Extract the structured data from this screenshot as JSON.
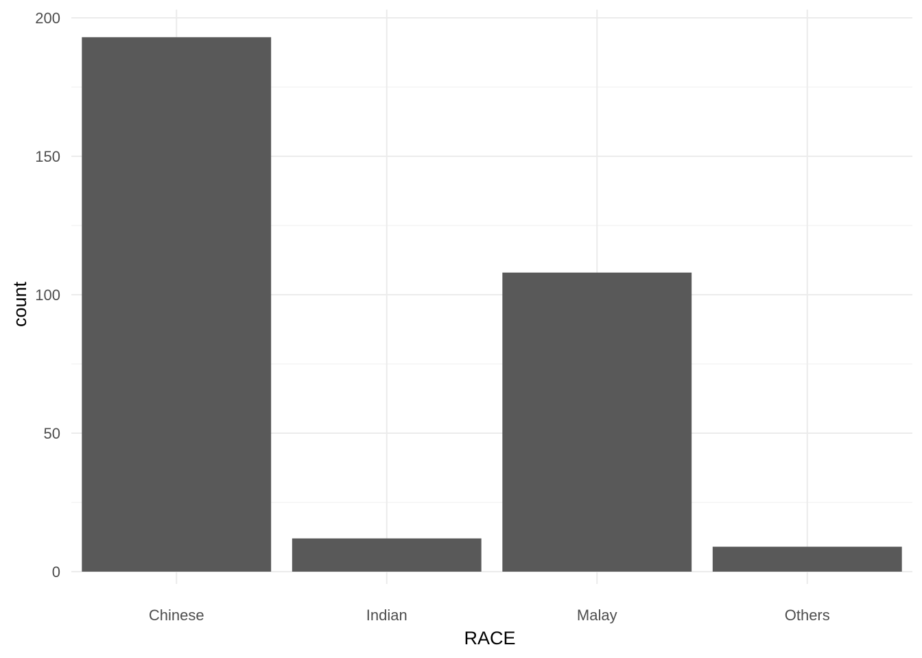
{
  "chart_data": {
    "type": "bar",
    "title": "",
    "xlabel": "RACE",
    "ylabel": "count",
    "categories": [
      "Chinese",
      "Indian",
      "Malay",
      "Others"
    ],
    "values": [
      193,
      12,
      108,
      9
    ],
    "ylim": [
      0,
      202
    ],
    "yticks": [
      0,
      50,
      100,
      150,
      200
    ],
    "grid": true,
    "bar_color": "#595959",
    "legend": "none"
  }
}
